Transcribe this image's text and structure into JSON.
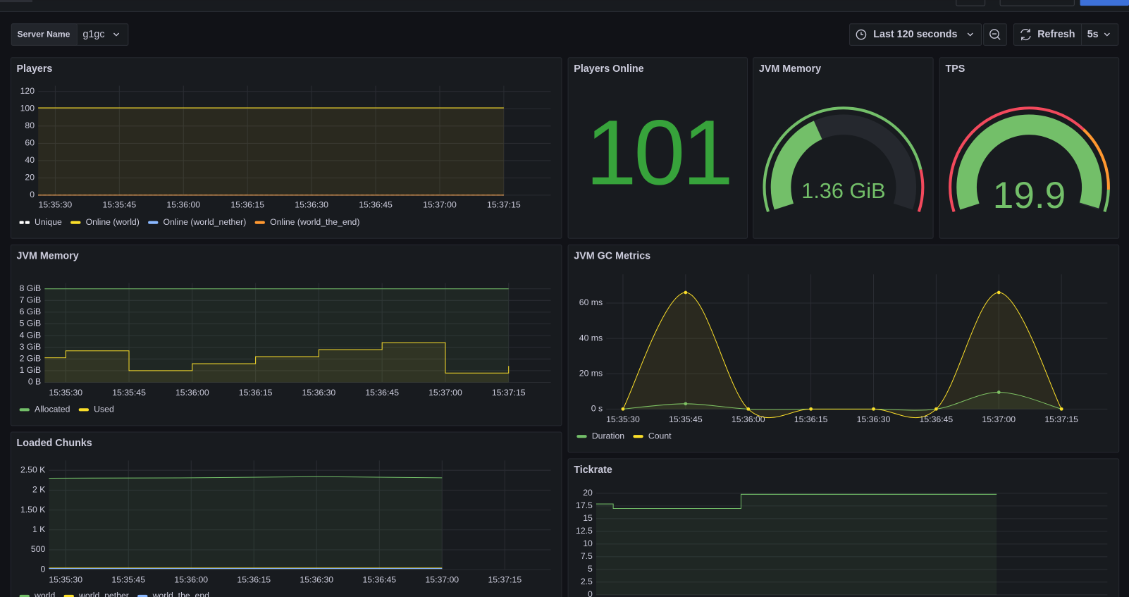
{
  "toolbar": {
    "server_label": "Server Name",
    "server_value": "g1gc",
    "time_range": "Last 120 seconds",
    "refresh": "Refresh",
    "refresh_interval": "5s"
  },
  "chart_data": [
    {
      "type": "line",
      "title": "Players",
      "interpolation": "linear",
      "grid": true,
      "x": [
        "15:35:26",
        "15:37:00",
        "15:37:15"
      ],
      "xlim": [
        "15:35:26",
        "15:37:26"
      ],
      "xticks": [
        "15:35:30",
        "15:35:45",
        "15:36:00",
        "15:36:15",
        "15:36:30",
        "15:36:45",
        "15:37:00",
        "15:37:15"
      ],
      "ylim": [
        0,
        120
      ],
      "yticks": [
        0,
        20,
        40,
        60,
        80,
        100,
        120
      ],
      "series": [
        {
          "name": "Unique",
          "color": "#ffffff",
          "dashed": true,
          "values": [
            0,
            0,
            0
          ]
        },
        {
          "name": "Online (world)",
          "color": "#fade2a",
          "values": [
            101,
            101,
            101
          ]
        },
        {
          "name": "Online (world_nether)",
          "color": "#8ab8ff",
          "values": [
            0,
            0,
            0
          ]
        },
        {
          "name": "Online (world_the_end)",
          "color": "#ff9830",
          "values": [
            0,
            0,
            0
          ]
        }
      ]
    },
    {
      "type": "stat",
      "title": "Players Online",
      "value": 101,
      "color": "#37a33b"
    },
    {
      "type": "gauge",
      "title": "JVM Memory",
      "value": 1.36,
      "value_label": "1.36 GiB",
      "min": 0,
      "max": 3.5,
      "thresholds": [
        {
          "value": 0,
          "color": "#73bf69"
        },
        {
          "value": 3,
          "color": "#f2495c"
        }
      ]
    },
    {
      "type": "gauge",
      "title": "TPS",
      "value": 19.9,
      "min": 0,
      "max": 20,
      "thresholds": [
        {
          "value": 0,
          "color": "#f2495c"
        },
        {
          "value": 14,
          "color": "#ff9830"
        },
        {
          "value": 18.5,
          "color": "#73bf69"
        }
      ]
    },
    {
      "type": "line",
      "title": "JVM Memory",
      "interpolation": "step",
      "grid": true,
      "x": [
        "15:35:25",
        "15:35:30",
        "15:35:45",
        "15:36:00",
        "15:36:15",
        "15:36:30",
        "15:36:45",
        "15:37:00",
        "15:37:15"
      ],
      "xlim": [
        "15:35:25",
        "15:37:25"
      ],
      "xticks": [
        "15:35:30",
        "15:35:45",
        "15:36:00",
        "15:36:15",
        "15:36:30",
        "15:36:45",
        "15:37:00",
        "15:37:15"
      ],
      "ylim": [
        0,
        8
      ],
      "yticks": [
        {
          "value": 0,
          "label": "0 B"
        },
        {
          "value": 1,
          "label": "1 GiB"
        },
        {
          "value": 2,
          "label": "2 GiB"
        },
        {
          "value": 3,
          "label": "3 GiB"
        },
        {
          "value": 4,
          "label": "4 GiB"
        },
        {
          "value": 5,
          "label": "5 GiB"
        },
        {
          "value": 6,
          "label": "6 GiB"
        },
        {
          "value": 7,
          "label": "7 GiB"
        },
        {
          "value": 8,
          "label": "8 GiB"
        }
      ],
      "series": [
        {
          "name": "Allocated",
          "color": "#73bf69",
          "values": [
            8,
            8,
            8,
            8,
            8,
            8,
            8,
            8,
            8
          ]
        },
        {
          "name": "Used",
          "color": "#fade2a",
          "values": [
            2.1,
            2.7,
            1.0,
            1.6,
            2.2,
            2.8,
            3.4,
            0.8,
            1.4
          ]
        }
      ]
    },
    {
      "type": "line",
      "title": "JVM GC Metrics",
      "interpolation": "smooth",
      "show_points": true,
      "grid": true,
      "x": [
        "15:35:30",
        "15:35:45",
        "15:36:00",
        "15:36:15",
        "15:36:30",
        "15:36:45",
        "15:37:00",
        "15:37:15"
      ],
      "xlim": [
        "15:35:26",
        "15:37:26"
      ],
      "xticks": [
        "15:35:30",
        "15:35:45",
        "15:36:00",
        "15:36:15",
        "15:36:30",
        "15:36:45",
        "15:37:00",
        "15:37:15"
      ],
      "ylim": [
        0,
        73
      ],
      "yticks": [
        {
          "value": 0,
          "label": "0 s"
        },
        {
          "value": 20,
          "label": "20 ms"
        },
        {
          "value": 40,
          "label": "40 ms"
        },
        {
          "value": 60,
          "label": "60 ms"
        }
      ],
      "series": [
        {
          "name": "Duration",
          "color": "#73bf69",
          "values": [
            0,
            3,
            0,
            0,
            0,
            0,
            9.5,
            0
          ]
        },
        {
          "name": "Count",
          "color": "#fade2a",
          "values": [
            0,
            66,
            0,
            0,
            0,
            0,
            66,
            0
          ]
        }
      ]
    },
    {
      "type": "line",
      "title": "Loaded Chunks",
      "interpolation": "linear",
      "grid": true,
      "x": [
        "15:35:26",
        "15:36:00",
        "15:36:30",
        "15:37:00"
      ],
      "xlim": [
        "15:35:26",
        "15:37:26"
      ],
      "xticks": [
        "15:35:30",
        "15:35:45",
        "15:36:00",
        "15:36:15",
        "15:36:30",
        "15:36:45",
        "15:37:00",
        "15:37:15"
      ],
      "ylim": [
        0,
        2600
      ],
      "yticks": [
        0,
        500,
        {
          "value": 1000,
          "label": "1 K"
        },
        {
          "value": 1500,
          "label": "1.50 K"
        },
        {
          "value": 2000,
          "label": "2 K"
        },
        {
          "value": 2500,
          "label": "2.50 K"
        }
      ],
      "series": [
        {
          "name": "world",
          "color": "#73bf69",
          "values": [
            2300,
            2310,
            2340,
            2310
          ]
        },
        {
          "name": "world_nether",
          "color": "#fade2a",
          "values": [
            40,
            40,
            40,
            40
          ]
        },
        {
          "name": "world_the_end",
          "color": "#8ab8ff",
          "values": [
            30,
            30,
            30,
            30
          ]
        }
      ]
    },
    {
      "type": "line",
      "title": "Tickrate",
      "interpolation": "step",
      "grid": true,
      "x": [
        "15:35:26",
        "15:35:30",
        "15:36:00",
        "15:37:00"
      ],
      "xlim": [
        "15:35:26",
        "15:37:26"
      ],
      "ylim": [
        0,
        20
      ],
      "yticks": [
        0,
        2.5,
        5,
        7.5,
        10,
        12.5,
        15,
        17.5,
        20
      ],
      "series": [
        {
          "name": "Tickrate",
          "color": "#73bf69",
          "values": [
            17.9,
            17,
            19.8,
            19.8
          ]
        }
      ],
      "hide_legend": true
    }
  ]
}
